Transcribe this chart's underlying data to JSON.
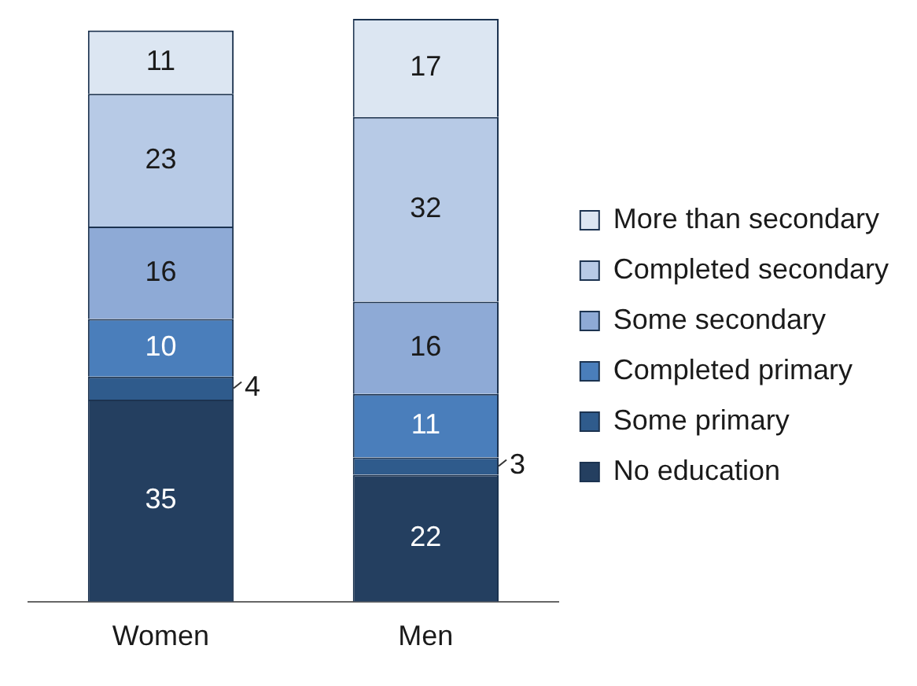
{
  "chart_data": {
    "type": "bar",
    "stacked": true,
    "categories": [
      "Women",
      "Men"
    ],
    "data_labels": true,
    "legend": "right",
    "series": [
      {
        "name": "No education",
        "color": "#243f60",
        "values": [
          35,
          22
        ]
      },
      {
        "name": "Some primary",
        "color": "#2f5b8c",
        "values": [
          4,
          3
        ]
      },
      {
        "name": "Completed primary",
        "color": "#4a7ebb",
        "values": [
          10,
          11
        ]
      },
      {
        "name": "Some secondary",
        "color": "#8eaad6",
        "values": [
          16,
          16
        ]
      },
      {
        "name": "Completed secondary",
        "color": "#b7cae6",
        "values": [
          23,
          32
        ]
      },
      {
        "name": "More than secondary",
        "color": "#dce6f2",
        "values": [
          11,
          17
        ]
      }
    ]
  }
}
